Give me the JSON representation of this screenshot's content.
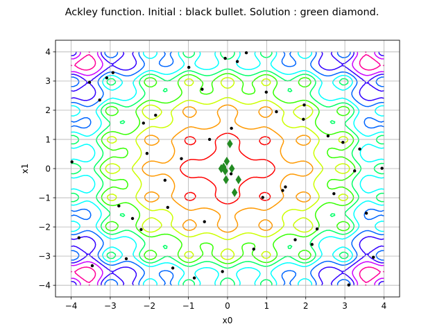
{
  "chart_data": {
    "type": "scatter",
    "title": "Ackley function. Initial : black bullet. Solution : green diamond.",
    "xlabel": "x0",
    "ylabel": "x1",
    "xlim": [
      -4.4,
      4.4
    ],
    "ylim": [
      -4.4,
      4.4
    ],
    "xticks": [
      -4,
      -3,
      -2,
      -1,
      0,
      1,
      2,
      3,
      4
    ],
    "yticks": [
      -4,
      -3,
      -2,
      -1,
      0,
      1,
      2,
      3,
      4
    ],
    "grid": true,
    "background": "contour",
    "contour_levels": [
      {
        "level": 4.0,
        "color": "#ff0000"
      },
      {
        "level": 6.0,
        "color": "#ff9900"
      },
      {
        "level": 7.5,
        "color": "#ccff00"
      },
      {
        "level": 8.5,
        "color": "#33ff00"
      },
      {
        "level": 9.3,
        "color": "#00ff66"
      },
      {
        "level": 10.0,
        "color": "#00ffff"
      },
      {
        "level": 10.7,
        "color": "#0066ff"
      },
      {
        "level": 11.3,
        "color": "#3300ff"
      },
      {
        "level": 11.8,
        "color": "#cc00ff"
      },
      {
        "level": 12.3,
        "color": "#ff0099"
      }
    ],
    "series": [
      {
        "marker": "circle",
        "color": "#000000",
        "points": [
          [
            -0.06,
            3.78
          ],
          [
            0.48,
            3.97
          ],
          [
            0.25,
            3.67
          ],
          [
            -0.99,
            3.47
          ],
          [
            -3.53,
            2.96
          ],
          [
            -2.93,
            3.29
          ],
          [
            -3.09,
            3.11
          ],
          [
            -3.27,
            2.35
          ],
          [
            -0.65,
            2.72
          ],
          [
            0.99,
            2.62
          ],
          [
            -1.84,
            1.83
          ],
          [
            -2.15,
            1.56
          ],
          [
            1.25,
            1.95
          ],
          [
            1.96,
            2.18
          ],
          [
            1.94,
            1.69
          ],
          [
            2.57,
            1.12
          ],
          [
            2.95,
            0.9
          ],
          [
            3.38,
            0.67
          ],
          [
            -0.46,
            1.0
          ],
          [
            0.1,
            1.38
          ],
          [
            -2.06,
            0.52
          ],
          [
            -1.18,
            0.34
          ],
          [
            -3.98,
            0.23
          ],
          [
            0.09,
            -0.18
          ],
          [
            3.25,
            -0.08
          ],
          [
            3.95,
            0.01
          ],
          [
            -1.6,
            -0.4
          ],
          [
            0.9,
            -0.99
          ],
          [
            1.41,
            -0.75
          ],
          [
            1.48,
            -0.63
          ],
          [
            2.72,
            -0.86
          ],
          [
            -2.78,
            -1.28
          ],
          [
            -1.53,
            -1.33
          ],
          [
            -2.43,
            -1.71
          ],
          [
            -0.59,
            -1.82
          ],
          [
            -2.21,
            -2.09
          ],
          [
            2.29,
            -2.07
          ],
          [
            3.55,
            -1.53
          ],
          [
            -3.8,
            -2.37
          ],
          [
            1.73,
            -2.44
          ],
          [
            2.16,
            -2.6
          ],
          [
            0.67,
            -2.76
          ],
          [
            -2.59,
            -3.09
          ],
          [
            3.73,
            -3.04
          ],
          [
            -3.46,
            -3.33
          ],
          [
            -1.4,
            -3.41
          ],
          [
            -0.85,
            -3.75
          ],
          [
            -0.13,
            -3.53
          ],
          [
            3.1,
            -3.99
          ]
        ]
      },
      {
        "marker": "diamond",
        "color": "#228b22",
        "points": [
          [
            0.06,
            0.85
          ],
          [
            -0.02,
            0.25
          ],
          [
            -0.1,
            0.05
          ],
          [
            -0.16,
            0.0
          ],
          [
            0.11,
            0.0
          ],
          [
            -0.06,
            -0.08
          ],
          [
            0.28,
            -0.38
          ],
          [
            -0.04,
            -0.38
          ],
          [
            0.18,
            -0.82
          ]
        ]
      }
    ]
  }
}
